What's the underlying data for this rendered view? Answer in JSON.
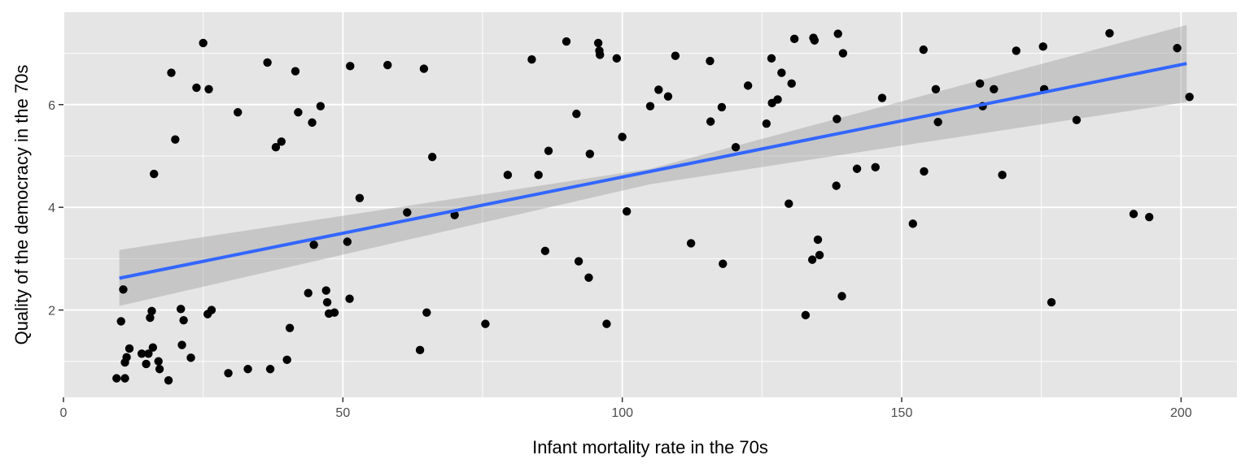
{
  "chart_data": {
    "type": "scatter",
    "xlabel": "Infant mortality rate in the 70s",
    "ylabel": "Quality of the democracy in the 70s",
    "xlim": [
      0,
      210
    ],
    "ylim": [
      0.3,
      7.8
    ],
    "x_ticks": [
      "0",
      "50",
      "100",
      "150",
      "200"
    ],
    "y_ticks": [
      "2",
      "4",
      "6"
    ],
    "grid": true,
    "panel_background": "#e5e5e5",
    "grid_color": "#ffffff",
    "point_color": "#000000",
    "smooth": {
      "method": "linear",
      "color": "#3366ff",
      "band_color": "#999999",
      "line": [
        [
          10,
          2.62
        ],
        [
          201,
          6.8
        ]
      ],
      "ci_lower": [
        [
          10,
          2.08
        ],
        [
          105,
          4.45
        ],
        [
          201,
          6.05
        ]
      ],
      "ci_upper": [
        [
          10,
          3.17
        ],
        [
          105,
          4.75
        ],
        [
          201,
          7.55
        ]
      ]
    },
    "points": [
      [
        9.5,
        0.67
      ],
      [
        11,
        0.67
      ],
      [
        10.3,
        1.78
      ],
      [
        10.7,
        2.4
      ],
      [
        11,
        0.98
      ],
      [
        11.3,
        1.08
      ],
      [
        11.8,
        1.25
      ],
      [
        14,
        1.15
      ],
      [
        14.8,
        0.95
      ],
      [
        15.2,
        1.15
      ],
      [
        15.5,
        1.85
      ],
      [
        15.8,
        1.98
      ],
      [
        16,
        1.27
      ],
      [
        16.2,
        4.65
      ],
      [
        17,
        1.0
      ],
      [
        17.2,
        0.85
      ],
      [
        18.8,
        0.63
      ],
      [
        19.3,
        6.62
      ],
      [
        20,
        5.32
      ],
      [
        21,
        2.02
      ],
      [
        21.2,
        1.32
      ],
      [
        21.5,
        1.8
      ],
      [
        22.8,
        1.07
      ],
      [
        23.8,
        6.33
      ],
      [
        25,
        7.2
      ],
      [
        25.8,
        1.92
      ],
      [
        26,
        6.3
      ],
      [
        26.5,
        2.0
      ],
      [
        29.5,
        0.77
      ],
      [
        31.2,
        5.85
      ],
      [
        33,
        0.85
      ],
      [
        36.5,
        6.82
      ],
      [
        37,
        0.85
      ],
      [
        38,
        5.17
      ],
      [
        39,
        5.28
      ],
      [
        40,
        1.03
      ],
      [
        40.5,
        1.65
      ],
      [
        41.5,
        6.65
      ],
      [
        42,
        5.85
      ],
      [
        43.8,
        2.33
      ],
      [
        44.5,
        5.65
      ],
      [
        44.8,
        3.27
      ],
      [
        46,
        5.97
      ],
      [
        47,
        2.38
      ],
      [
        47.2,
        2.15
      ],
      [
        47.5,
        1.93
      ],
      [
        48.5,
        1.95
      ],
      [
        50.8,
        3.33
      ],
      [
        51.2,
        2.22
      ],
      [
        51.3,
        6.75
      ],
      [
        53,
        4.18
      ],
      [
        58,
        6.77
      ],
      [
        61.5,
        3.9
      ],
      [
        63.8,
        1.22
      ],
      [
        64.5,
        6.7
      ],
      [
        65,
        1.95
      ],
      [
        66,
        4.98
      ],
      [
        70,
        3.85
      ],
      [
        75.5,
        1.73
      ],
      [
        79.5,
        4.63
      ],
      [
        83.8,
        6.88
      ],
      [
        85,
        4.63
      ],
      [
        86.2,
        3.15
      ],
      [
        86.8,
        5.1
      ],
      [
        90,
        7.23
      ],
      [
        91.8,
        5.82
      ],
      [
        92.2,
        2.95
      ],
      [
        94,
        2.63
      ],
      [
        94.2,
        5.04
      ],
      [
        95.7,
        7.2
      ],
      [
        95.9,
        7.05
      ],
      [
        96,
        6.97
      ],
      [
        97.2,
        1.73
      ],
      [
        99,
        6.9
      ],
      [
        100,
        5.37
      ],
      [
        100.8,
        3.92
      ],
      [
        105,
        5.97
      ],
      [
        106.5,
        6.29
      ],
      [
        108.2,
        6.16
      ],
      [
        109.5,
        6.95
      ],
      [
        112.3,
        3.3
      ],
      [
        115.7,
        6.85
      ],
      [
        115.8,
        5.67
      ],
      [
        117.8,
        5.95
      ],
      [
        118,
        2.9
      ],
      [
        120.3,
        5.17
      ],
      [
        122.5,
        6.37
      ],
      [
        125.8,
        5.63
      ],
      [
        126.7,
        6.9
      ],
      [
        126.8,
        6.03
      ],
      [
        127.8,
        6.1
      ],
      [
        128.5,
        6.62
      ],
      [
        129.8,
        4.07
      ],
      [
        130.3,
        6.41
      ],
      [
        130.8,
        7.28
      ],
      [
        132.8,
        1.9
      ],
      [
        134,
        2.98
      ],
      [
        134.2,
        7.3
      ],
      [
        134.4,
        7.25
      ],
      [
        135,
        3.37
      ],
      [
        135.3,
        3.07
      ],
      [
        138.3,
        4.42
      ],
      [
        138.4,
        5.72
      ],
      [
        138.6,
        7.38
      ],
      [
        139.3,
        2.27
      ],
      [
        139.5,
        7.0
      ],
      [
        142,
        4.75
      ],
      [
        145.3,
        4.78
      ],
      [
        146.5,
        6.13
      ],
      [
        152,
        3.68
      ],
      [
        153.9,
        7.07
      ],
      [
        154,
        4.7
      ],
      [
        156.1,
        6.3
      ],
      [
        156.5,
        5.66
      ],
      [
        164,
        6.41
      ],
      [
        164.5,
        5.97
      ],
      [
        166.5,
        6.3
      ],
      [
        168,
        4.63
      ],
      [
        170.5,
        7.05
      ],
      [
        175.3,
        7.13
      ],
      [
        175.5,
        6.3
      ],
      [
        176.8,
        2.15
      ],
      [
        181.3,
        5.7
      ],
      [
        187.2,
        7.39
      ],
      [
        191.5,
        3.87
      ],
      [
        194.3,
        3.81
      ],
      [
        199.3,
        7.1
      ],
      [
        201.5,
        6.15
      ]
    ]
  }
}
